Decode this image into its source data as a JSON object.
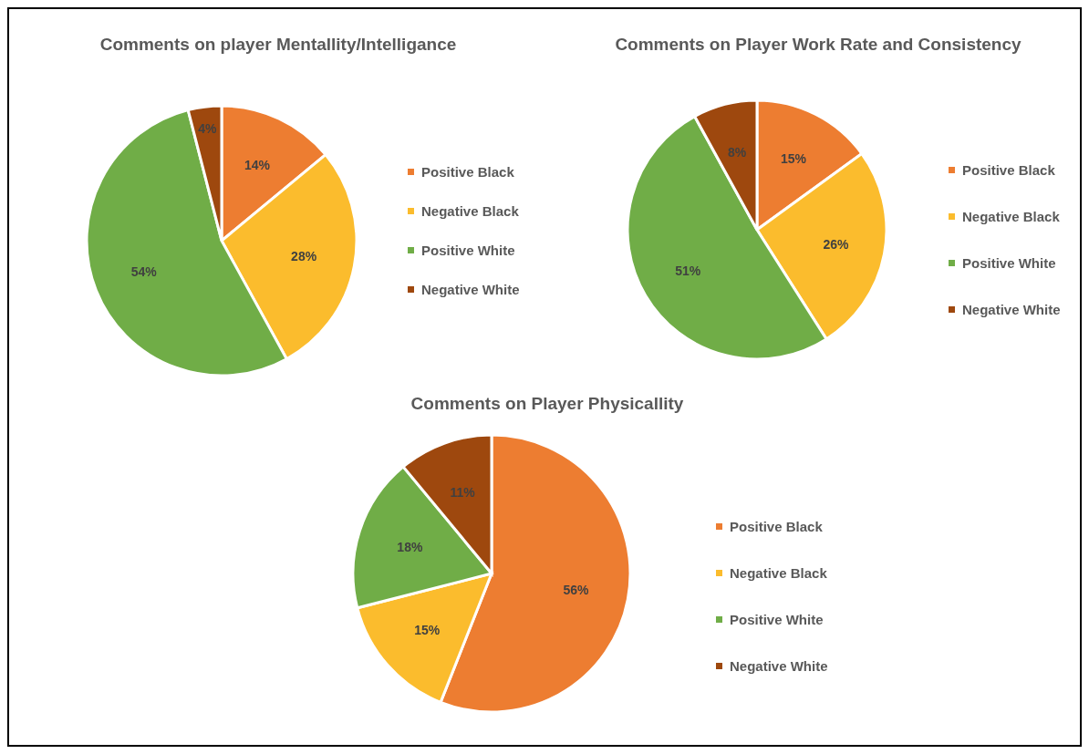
{
  "chart_data": [
    {
      "type": "pie",
      "title": "Comments on player Mentallity/Intelligance",
      "categories": [
        "Positive Black",
        "Negative Black",
        "Positive White",
        "Negative White"
      ],
      "values": [
        14,
        28,
        54,
        4
      ],
      "colors": [
        "#ed7d31",
        "#fbbc2d",
        "#70ad47",
        "#9e480e"
      ],
      "value_labels": [
        "14%",
        "28%",
        "54%",
        "4%"
      ],
      "legend": "right"
    },
    {
      "type": "pie",
      "title": "Comments on Player Work Rate and Consistency",
      "categories": [
        "Positive Black",
        "Negative Black",
        "Positive White",
        "Negative White"
      ],
      "values": [
        15,
        26,
        51,
        8
      ],
      "colors": [
        "#ed7d31",
        "#fbbc2d",
        "#70ad47",
        "#9e480e"
      ],
      "value_labels": [
        "15%",
        "26%",
        "51%",
        "8%"
      ],
      "legend": "right"
    },
    {
      "type": "pie",
      "title": "Comments on Player Physicallity",
      "categories": [
        "Positive Black",
        "Negative Black",
        "Positive White",
        "Negative White"
      ],
      "values": [
        56,
        15,
        18,
        11
      ],
      "colors": [
        "#ed7d31",
        "#fbbc2d",
        "#70ad47",
        "#9e480e"
      ],
      "value_labels": [
        "56%",
        "15%",
        "18%",
        "11%"
      ],
      "legend": "right"
    }
  ]
}
